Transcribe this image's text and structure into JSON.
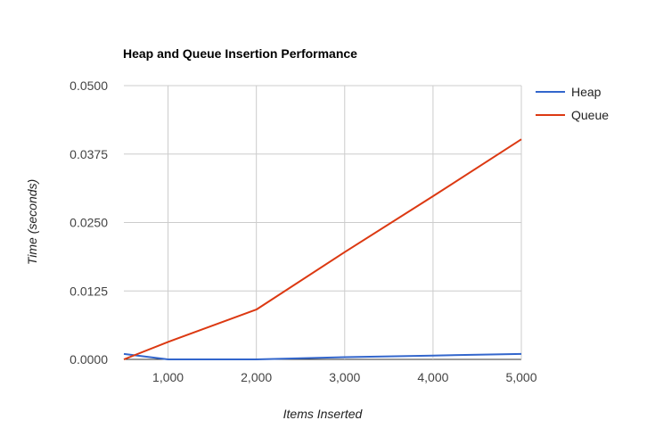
{
  "chart_data": {
    "type": "line",
    "title": "Heap and Queue Insertion Performance",
    "xlabel": "Items Inserted",
    "ylabel": "Time (seconds)",
    "xlim": [
      500,
      5000
    ],
    "ylim": [
      0,
      0.05
    ],
    "x_ticks": [
      1000,
      2000,
      3000,
      4000,
      5000
    ],
    "x_tick_labels": [
      "1,000",
      "2,000",
      "3,000",
      "4,000",
      "5,000"
    ],
    "y_ticks": [
      0,
      0.0125,
      0.025,
      0.0375,
      0.05
    ],
    "y_tick_labels": [
      "0.0000",
      "0.0125",
      "0.0250",
      "0.0375",
      "0.0500"
    ],
    "grid": true,
    "legend_position": "right",
    "series": [
      {
        "name": "Heap",
        "color": "#3366cc",
        "x": [
          500,
          1000,
          2000,
          3000,
          4000,
          5000
        ],
        "y": [
          0.001,
          0.0,
          0.0,
          0.0004,
          0.0007,
          0.001
        ]
      },
      {
        "name": "Queue",
        "color": "#dc3912",
        "x": [
          500,
          1000,
          2000,
          3000,
          4000,
          5000
        ],
        "y": [
          0.0,
          0.0032,
          0.0091,
          0.0196,
          0.0298,
          0.0402
        ]
      }
    ]
  }
}
